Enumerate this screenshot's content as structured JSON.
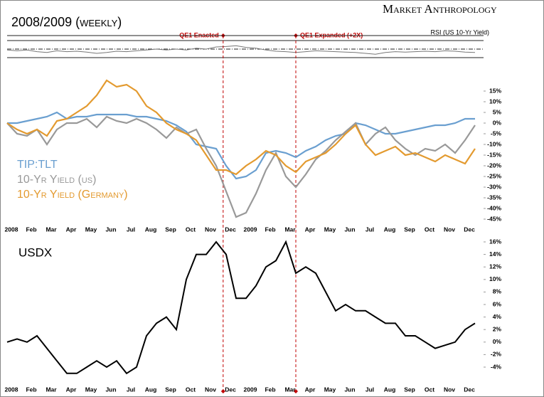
{
  "header": {
    "title": "2008/2009 (weekly)",
    "brand": "Market Anthropology"
  },
  "chart_data": [
    {
      "type": "line",
      "title": "RSI (US 10-Yr Yield)",
      "color": "#777777",
      "x": [
        0,
        0.5,
        1,
        1.5,
        2,
        2.5,
        3,
        3.5,
        4,
        4.5,
        5,
        5.5,
        6,
        6.5,
        7,
        7.5,
        8,
        8.5,
        9,
        9.5,
        10,
        10.5,
        11,
        11.5,
        12,
        12.5,
        13,
        13.5,
        14,
        14.5,
        15,
        15.5,
        16,
        16.5,
        17,
        17.5,
        18,
        18.5,
        19,
        19.5,
        20,
        20.5,
        21,
        21.5,
        22,
        22.5,
        23,
        23.5
      ],
      "values": [
        52,
        54,
        52,
        56,
        58,
        54,
        56,
        55,
        57,
        60,
        58,
        55,
        56,
        54,
        52,
        50,
        52,
        50,
        52,
        48,
        50,
        45,
        44,
        42,
        46,
        48,
        52,
        55,
        56,
        58,
        56,
        54,
        55,
        56,
        57,
        58,
        60,
        62,
        58,
        56,
        57,
        56,
        55,
        56,
        54,
        55,
        57,
        58
      ],
      "xlim": [
        0,
        23.5
      ],
      "ylim": [
        30,
        70
      ],
      "levels": [
        70,
        50,
        30
      ],
      "annotations": [
        {
          "text": "QE1 Enacted",
          "x": 10.85,
          "color": "#c00000"
        },
        {
          "text": "QE1 Expanded (+2X)",
          "x": 14.5,
          "color": "#c00000"
        }
      ]
    },
    {
      "type": "line",
      "x": [
        0,
        0.5,
        1,
        1.5,
        2,
        2.5,
        3,
        3.5,
        4,
        4.5,
        5,
        5.5,
        6,
        6.5,
        7,
        7.5,
        8,
        8.5,
        9,
        9.5,
        10,
        10.5,
        11,
        11.5,
        12,
        12.5,
        13,
        13.5,
        14,
        14.5,
        15,
        15.5,
        16,
        16.5,
        17,
        17.5,
        18,
        18.5,
        19,
        19.5,
        20,
        20.5,
        21,
        21.5,
        22,
        22.5,
        23,
        23.5
      ],
      "series": [
        {
          "name": "TIP:TLT",
          "color": "#6a9fd0",
          "values": [
            0,
            0,
            1,
            2,
            3,
            5,
            2,
            3,
            3,
            4,
            4,
            4,
            4,
            3,
            3,
            2,
            1,
            -1,
            -4,
            -10,
            -11,
            -12,
            -20,
            -26,
            -25,
            -22,
            -14,
            -13,
            -14,
            -16,
            -13,
            -11,
            -8,
            -6,
            -5,
            0,
            -1,
            -3,
            -5,
            -5,
            -4,
            -3,
            -2,
            -1,
            -1,
            0,
            2,
            2
          ]
        },
        {
          "name": "10-Yr Yield (us)",
          "color": "#999999",
          "values": [
            0,
            -5,
            -6,
            -3,
            -10,
            -3,
            0,
            0,
            2,
            -2,
            3,
            1,
            0,
            2,
            0,
            -3,
            -7,
            -2,
            -5,
            -3,
            -12,
            -20,
            -32,
            -44,
            -42,
            -33,
            -22,
            -14,
            -25,
            -30,
            -24,
            -17,
            -13,
            -8,
            -4,
            0,
            -10,
            -5,
            -2,
            -8,
            -12,
            -15,
            -12,
            -13,
            -10,
            -14,
            -8,
            -1
          ]
        },
        {
          "name": "10-Yr Yield (Germany)",
          "color": "#e39a2f",
          "values": [
            0,
            -3,
            -5,
            -3,
            -6,
            1,
            2,
            5,
            8,
            13,
            20,
            17,
            18,
            15,
            8,
            5,
            0,
            -3,
            -5,
            -8,
            -15,
            -22,
            -22,
            -24,
            -20,
            -17,
            -13,
            -15,
            -20,
            -23,
            -18,
            -16,
            -14,
            -10,
            -5,
            -1,
            -10,
            -15,
            -13,
            -11,
            -15,
            -14,
            -16,
            -18,
            -15,
            -17,
            -19,
            -12
          ]
        }
      ],
      "xlim": [
        0,
        23.5
      ],
      "ylim": [
        15,
        -45
      ],
      "yticks": [
        {
          "value": 15,
          "label": "15%"
        },
        {
          "value": 10,
          "label": "10%"
        },
        {
          "value": 5,
          "label": "5%"
        },
        {
          "value": 0,
          "label": "0%"
        },
        {
          "value": -5,
          "label": "-5%"
        },
        {
          "value": -10,
          "label": "-10%"
        },
        {
          "value": -15,
          "label": "-15%"
        },
        {
          "value": -20,
          "label": "-20%"
        },
        {
          "value": -25,
          "label": "-25%"
        },
        {
          "value": -30,
          "label": "-30%"
        },
        {
          "value": -35,
          "label": "-35%"
        },
        {
          "value": -40,
          "label": "-40%"
        },
        {
          "value": -45,
          "label": "-45%"
        }
      ],
      "xticks": [
        {
          "value": 0,
          "label": "2008"
        },
        {
          "value": 1,
          "label": "Feb"
        },
        {
          "value": 2,
          "label": "Mar"
        },
        {
          "value": 3,
          "label": "Apr"
        },
        {
          "value": 4,
          "label": "May"
        },
        {
          "value": 5,
          "label": "Jun"
        },
        {
          "value": 6,
          "label": "Jul"
        },
        {
          "value": 7,
          "label": "Aug"
        },
        {
          "value": 8,
          "label": "Sep"
        },
        {
          "value": 9,
          "label": "Oct"
        },
        {
          "value": 10,
          "label": "Nov"
        },
        {
          "value": 11,
          "label": "Dec"
        },
        {
          "value": 12,
          "label": "2009"
        },
        {
          "value": 13,
          "label": "Feb"
        },
        {
          "value": 14,
          "label": "Mar"
        },
        {
          "value": 15,
          "label": "Apr"
        },
        {
          "value": 16,
          "label": "May"
        },
        {
          "value": 17,
          "label": "Jun"
        },
        {
          "value": 18,
          "label": "Jul"
        },
        {
          "value": 19,
          "label": "Aug"
        },
        {
          "value": 20,
          "label": "Sep"
        },
        {
          "value": 21,
          "label": "Oct"
        },
        {
          "value": 22,
          "label": "Nov"
        },
        {
          "value": 23,
          "label": "Dec"
        }
      ]
    },
    {
      "type": "line",
      "x": [
        0,
        0.5,
        1,
        1.5,
        2,
        2.5,
        3,
        3.5,
        4,
        4.5,
        5,
        5.5,
        6,
        6.5,
        7,
        7.5,
        8,
        8.5,
        9,
        9.5,
        10,
        10.5,
        11,
        11.5,
        12,
        12.5,
        13,
        13.5,
        14,
        14.5,
        15,
        15.5,
        16,
        16.5,
        17,
        17.5,
        18,
        18.5,
        19,
        19.5,
        20,
        20.5,
        21,
        21.5,
        22,
        22.5,
        23,
        23.5
      ],
      "series": [
        {
          "name": "USDX",
          "color": "#000000",
          "values": [
            0,
            0.5,
            0,
            1,
            -1,
            -3,
            -5,
            -5,
            -4,
            -3,
            -4,
            -3,
            -5,
            -4,
            1,
            3,
            4,
            2,
            10,
            14,
            14,
            16,
            14,
            7,
            7,
            9,
            12,
            13,
            16,
            11,
            12,
            11,
            8,
            5,
            6,
            5,
            5,
            4,
            3,
            3,
            1,
            1,
            0,
            -1,
            -0.5,
            0,
            2,
            3
          ]
        }
      ],
      "xlim": [
        0,
        23.5
      ],
      "ylim": [
        16,
        -4
      ],
      "yticks": [
        {
          "value": 16,
          "label": "16%"
        },
        {
          "value": 14,
          "label": "14%"
        },
        {
          "value": 12,
          "label": "12%"
        },
        {
          "value": 10,
          "label": "10%"
        },
        {
          "value": 8,
          "label": "8%"
        },
        {
          "value": 6,
          "label": "6%"
        },
        {
          "value": 4,
          "label": "4%"
        },
        {
          "value": 2,
          "label": "2%"
        },
        {
          "value": 0,
          "label": "0%"
        },
        {
          "value": -2,
          "label": "-2%"
        },
        {
          "value": -4,
          "label": "-4%"
        }
      ],
      "xticks": [
        {
          "value": 0,
          "label": "2008"
        },
        {
          "value": 1,
          "label": "Feb"
        },
        {
          "value": 2,
          "label": "Mar"
        },
        {
          "value": 3,
          "label": "Apr"
        },
        {
          "value": 4,
          "label": "May"
        },
        {
          "value": 5,
          "label": "Jun"
        },
        {
          "value": 6,
          "label": "Jul"
        },
        {
          "value": 7,
          "label": "Aug"
        },
        {
          "value": 8,
          "label": "Sep"
        },
        {
          "value": 9,
          "label": "Oct"
        },
        {
          "value": 10,
          "label": "Nov"
        },
        {
          "value": 11,
          "label": "Dec"
        },
        {
          "value": 12,
          "label": "2009"
        },
        {
          "value": 13,
          "label": "Feb"
        },
        {
          "value": 14,
          "label": "Mar"
        },
        {
          "value": 15,
          "label": "Apr"
        },
        {
          "value": 16,
          "label": "May"
        },
        {
          "value": 17,
          "label": "Jun"
        },
        {
          "value": 18,
          "label": "Jul"
        },
        {
          "value": 19,
          "label": "Aug"
        },
        {
          "value": 20,
          "label": "Sep"
        },
        {
          "value": 21,
          "label": "Oct"
        },
        {
          "value": 22,
          "label": "Nov"
        },
        {
          "value": 23,
          "label": "Dec"
        }
      ]
    }
  ]
}
